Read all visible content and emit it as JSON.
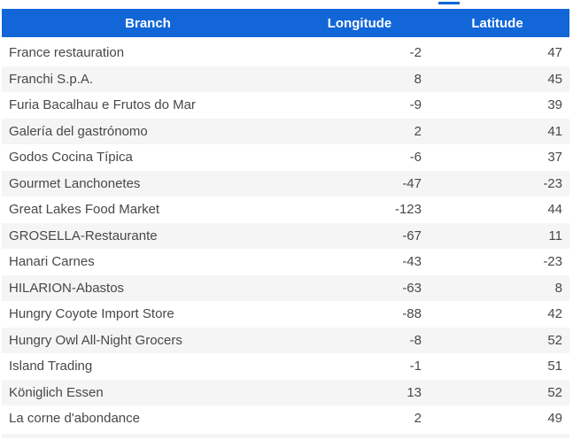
{
  "colors": {
    "header_bg": "#1266d8",
    "header_text": "#ffffff",
    "row_stripe": "#f5f5f6",
    "body_text": "#484848"
  },
  "table": {
    "columns": [
      {
        "key": "branch",
        "label": "Branch"
      },
      {
        "key": "longitude",
        "label": "Longitude"
      },
      {
        "key": "latitude",
        "label": "Latitude"
      }
    ],
    "rows": [
      {
        "branch": "France restauration",
        "longitude": -2,
        "latitude": 47
      },
      {
        "branch": "Franchi S.p.A.",
        "longitude": 8,
        "latitude": 45
      },
      {
        "branch": "Furia Bacalhau e Frutos do Mar",
        "longitude": -9,
        "latitude": 39
      },
      {
        "branch": "Galería del gastrónomo",
        "longitude": 2,
        "latitude": 41
      },
      {
        "branch": "Godos Cocina Típica",
        "longitude": -6,
        "latitude": 37
      },
      {
        "branch": "Gourmet Lanchonetes",
        "longitude": -47,
        "latitude": -23
      },
      {
        "branch": "Great Lakes Food Market",
        "longitude": -123,
        "latitude": 44
      },
      {
        "branch": "GROSELLA-Restaurante",
        "longitude": -67,
        "latitude": 11
      },
      {
        "branch": "Hanari Carnes",
        "longitude": -43,
        "latitude": -23
      },
      {
        "branch": "HILARION-Abastos",
        "longitude": -63,
        "latitude": 8
      },
      {
        "branch": "Hungry Coyote Import Store",
        "longitude": -88,
        "latitude": 42
      },
      {
        "branch": "Hungry Owl All-Night Grocers",
        "longitude": -8,
        "latitude": 52
      },
      {
        "branch": "Island Trading",
        "longitude": -1,
        "latitude": 51
      },
      {
        "branch": "Königlich Essen",
        "longitude": 13,
        "latitude": 52
      },
      {
        "branch": "La corne d'abondance",
        "longitude": 2,
        "latitude": 49
      }
    ]
  }
}
